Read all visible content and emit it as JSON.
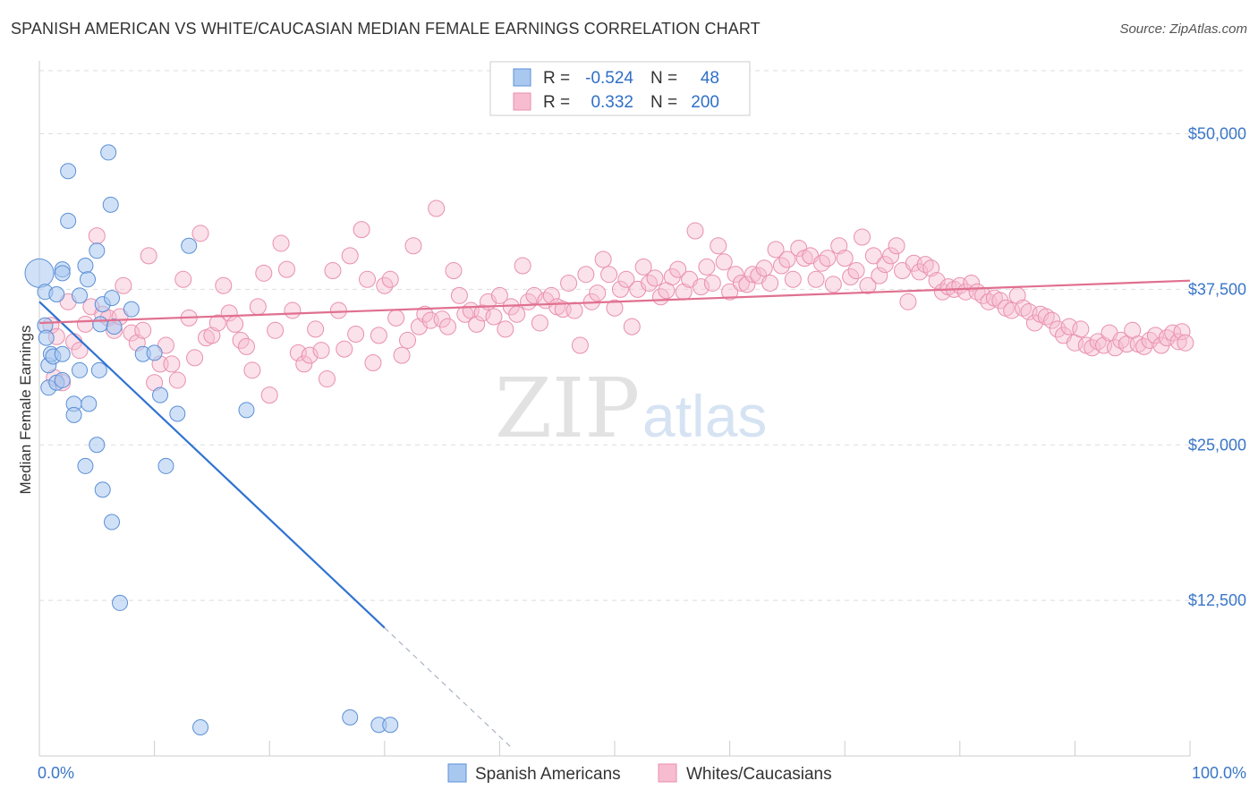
{
  "title": "SPANISH AMERICAN VS WHITE/CAUCASIAN MEDIAN FEMALE EARNINGS CORRELATION CHART",
  "source": "Source: ZipAtlas.com",
  "watermark": {
    "zip": "ZIP",
    "atlas": "atlas"
  },
  "legend": {
    "r_label": "R =",
    "n_label": "N =",
    "rows": [
      {
        "series": "Spanish Americans",
        "r": "-0.524",
        "n": "48"
      },
      {
        "series": "Whites/Caucasians",
        "r": "0.332",
        "n": "200"
      }
    ]
  },
  "colors": {
    "blue_fill": "#a9c8f0",
    "blue_stroke": "#5b8fd6",
    "blue_line": "#2f73d0",
    "pink_fill": "#f7bcd0",
    "pink_stroke": "#e890ad",
    "pink_line": "#e0708f",
    "tick_label": "#3a76c8",
    "grid": "#dddddd"
  },
  "chart_data": {
    "type": "scatter",
    "xlabel": "",
    "ylabel": "Median Female Earnings",
    "x_tick_labels": [
      "0.0%",
      "100.0%"
    ],
    "y_tick_labels": [
      "$12,500",
      "$25,000",
      "$37,500",
      "$50,000"
    ],
    "xlim": [
      0,
      100
    ],
    "ylim": [
      0,
      50000
    ],
    "grid": true,
    "legend_position": "top-center",
    "series": [
      {
        "name": "Spanish Americans",
        "r": -0.524,
        "n": 48,
        "trend": {
          "x0": 0,
          "y0": 36500,
          "x1": 30,
          "y1": 10300,
          "dashed_to_x": 41
        },
        "points": [
          [
            0,
            38800
          ],
          [
            0.5,
            37300
          ],
          [
            0.5,
            34600
          ],
          [
            0.6,
            33600
          ],
          [
            0.8,
            31400
          ],
          [
            0.8,
            29600
          ],
          [
            1,
            32300
          ],
          [
            1.2,
            32100
          ],
          [
            1.5,
            30000
          ],
          [
            1.5,
            37100
          ],
          [
            2,
            39100
          ],
          [
            2,
            38800
          ],
          [
            2,
            32300
          ],
          [
            2,
            30200
          ],
          [
            2.5,
            47000
          ],
          [
            2.5,
            43000
          ],
          [
            3,
            28300
          ],
          [
            3,
            27400
          ],
          [
            3.5,
            37000
          ],
          [
            3.5,
            31000
          ],
          [
            4,
            23300
          ],
          [
            4,
            39400
          ],
          [
            4.2,
            38300
          ],
          [
            4.3,
            28300
          ],
          [
            5,
            40600
          ],
          [
            5,
            25000
          ],
          [
            5.2,
            31000
          ],
          [
            5.3,
            34700
          ],
          [
            5.5,
            36300
          ],
          [
            5.5,
            21400
          ],
          [
            6,
            48500
          ],
          [
            6.2,
            44300
          ],
          [
            6.3,
            36800
          ],
          [
            6.3,
            18800
          ],
          [
            6.5,
            34500
          ],
          [
            7,
            12300
          ],
          [
            8,
            35900
          ],
          [
            9,
            32300
          ],
          [
            10,
            32400
          ],
          [
            10.5,
            29000
          ],
          [
            11,
            23300
          ],
          [
            12,
            27500
          ],
          [
            13,
            41000
          ],
          [
            14,
            2300
          ],
          [
            18,
            27800
          ],
          [
            27,
            3100
          ],
          [
            29.5,
            2500
          ],
          [
            30.5,
            2500
          ]
        ]
      },
      {
        "name": "Whites/Caucasians",
        "r": 0.332,
        "n": 200,
        "trend": {
          "x0": 0,
          "y0": 34800,
          "x1": 100,
          "y1": 38200
        },
        "points": [
          [
            1,
            34600
          ],
          [
            1.3,
            30400
          ],
          [
            1.5,
            33700
          ],
          [
            2,
            30000
          ],
          [
            2.5,
            36500
          ],
          [
            3,
            33300
          ],
          [
            3.5,
            32600
          ],
          [
            4,
            34700
          ],
          [
            4.5,
            36100
          ],
          [
            5,
            41800
          ],
          [
            5.5,
            35500
          ],
          [
            6,
            35200
          ],
          [
            6.5,
            34200
          ],
          [
            7,
            35300
          ],
          [
            7.3,
            37800
          ],
          [
            8,
            34000
          ],
          [
            8.5,
            33200
          ],
          [
            9,
            34200
          ],
          [
            9.5,
            40200
          ],
          [
            10,
            30000
          ],
          [
            10.5,
            31500
          ],
          [
            11,
            33000
          ],
          [
            11.5,
            31500
          ],
          [
            12,
            30200
          ],
          [
            12.5,
            38300
          ],
          [
            13,
            35200
          ],
          [
            13.5,
            32000
          ],
          [
            14,
            42000
          ],
          [
            14.5,
            33600
          ],
          [
            15,
            33800
          ],
          [
            15.5,
            34800
          ],
          [
            16,
            37800
          ],
          [
            16.5,
            35600
          ],
          [
            17,
            34700
          ],
          [
            17.5,
            33400
          ],
          [
            18,
            32900
          ],
          [
            18.5,
            31000
          ],
          [
            19,
            36100
          ],
          [
            19.5,
            38800
          ],
          [
            20,
            29000
          ],
          [
            20.5,
            34200
          ],
          [
            21,
            41200
          ],
          [
            21.5,
            39100
          ],
          [
            22,
            35800
          ],
          [
            22.5,
            32400
          ],
          [
            23,
            31500
          ],
          [
            23.5,
            32200
          ],
          [
            24,
            34300
          ],
          [
            24.5,
            32600
          ],
          [
            25,
            30300
          ],
          [
            25.5,
            39000
          ],
          [
            26,
            35800
          ],
          [
            26.5,
            32700
          ],
          [
            27,
            40200
          ],
          [
            27.5,
            33900
          ],
          [
            28,
            42300
          ],
          [
            28.5,
            38300
          ],
          [
            29,
            31600
          ],
          [
            29.5,
            33800
          ],
          [
            30,
            37800
          ],
          [
            30.5,
            38300
          ],
          [
            31,
            35200
          ],
          [
            31.5,
            32200
          ],
          [
            32,
            33400
          ],
          [
            32.5,
            41000
          ],
          [
            33,
            34500
          ],
          [
            33.5,
            35500
          ],
          [
            34,
            35000
          ],
          [
            34.5,
            44000
          ],
          [
            35,
            35100
          ],
          [
            35.5,
            34500
          ],
          [
            36,
            39000
          ],
          [
            36.5,
            37000
          ],
          [
            37,
            35500
          ],
          [
            37.5,
            35800
          ],
          [
            38,
            34700
          ],
          [
            38.5,
            35600
          ],
          [
            39,
            36500
          ],
          [
            39.5,
            35300
          ],
          [
            40,
            37000
          ],
          [
            40.5,
            34300
          ],
          [
            41,
            36100
          ],
          [
            41.5,
            35500
          ],
          [
            42,
            39400
          ],
          [
            42.5,
            36500
          ],
          [
            43,
            37000
          ],
          [
            43.5,
            34800
          ],
          [
            44,
            36600
          ],
          [
            44.5,
            37000
          ],
          [
            45,
            36100
          ],
          [
            45.5,
            35900
          ],
          [
            46,
            38000
          ],
          [
            46.5,
            35800
          ],
          [
            47,
            33000
          ],
          [
            47.5,
            38700
          ],
          [
            48,
            36500
          ],
          [
            48.5,
            37200
          ],
          [
            49,
            39900
          ],
          [
            49.5,
            38700
          ],
          [
            50,
            36000
          ],
          [
            50.5,
            37500
          ],
          [
            51,
            38300
          ],
          [
            51.5,
            34500
          ],
          [
            52,
            37500
          ],
          [
            52.5,
            39300
          ],
          [
            53,
            38000
          ],
          [
            53.5,
            38400
          ],
          [
            54,
            36900
          ],
          [
            54.5,
            37400
          ],
          [
            55,
            38500
          ],
          [
            55.5,
            39100
          ],
          [
            56,
            37300
          ],
          [
            56.5,
            38300
          ],
          [
            57,
            42200
          ],
          [
            57.5,
            37700
          ],
          [
            58,
            39300
          ],
          [
            58.5,
            38000
          ],
          [
            59,
            41000
          ],
          [
            59.5,
            39700
          ],
          [
            60,
            37300
          ],
          [
            60.5,
            38700
          ],
          [
            61,
            38000
          ],
          [
            61.5,
            37900
          ],
          [
            62,
            38700
          ],
          [
            62.5,
            38600
          ],
          [
            63,
            39200
          ],
          [
            63.5,
            38000
          ],
          [
            64,
            40700
          ],
          [
            64.5,
            39400
          ],
          [
            65,
            39900
          ],
          [
            65.5,
            38300
          ],
          [
            66,
            40800
          ],
          [
            66.5,
            40000
          ],
          [
            67,
            40200
          ],
          [
            67.5,
            38300
          ],
          [
            68,
            39600
          ],
          [
            68.5,
            40000
          ],
          [
            69,
            37900
          ],
          [
            69.5,
            41000
          ],
          [
            70,
            40000
          ],
          [
            70.5,
            38500
          ],
          [
            71,
            39000
          ],
          [
            71.5,
            41700
          ],
          [
            72,
            37800
          ],
          [
            72.5,
            40200
          ],
          [
            73,
            38600
          ],
          [
            73.5,
            39500
          ],
          [
            74,
            40200
          ],
          [
            74.5,
            41000
          ],
          [
            75,
            39000
          ],
          [
            75.5,
            36500
          ],
          [
            76,
            39600
          ],
          [
            76.5,
            38900
          ],
          [
            77,
            39500
          ],
          [
            77.5,
            39200
          ],
          [
            78,
            38200
          ],
          [
            78.5,
            37300
          ],
          [
            79,
            37700
          ],
          [
            79.5,
            37500
          ],
          [
            80,
            37800
          ],
          [
            80.5,
            37300
          ],
          [
            81,
            38000
          ],
          [
            81.5,
            37300
          ],
          [
            82,
            37000
          ],
          [
            82.5,
            36500
          ],
          [
            83,
            36800
          ],
          [
            83.5,
            36600
          ],
          [
            84,
            36000
          ],
          [
            84.5,
            35800
          ],
          [
            85,
            37000
          ],
          [
            85.5,
            36000
          ],
          [
            86,
            35700
          ],
          [
            86.5,
            34800
          ],
          [
            87,
            35500
          ],
          [
            87.5,
            35300
          ],
          [
            88,
            35000
          ],
          [
            88.5,
            34300
          ],
          [
            89,
            33800
          ],
          [
            89.5,
            34500
          ],
          [
            90,
            33200
          ],
          [
            90.5,
            34300
          ],
          [
            91,
            33000
          ],
          [
            91.5,
            32800
          ],
          [
            92,
            33300
          ],
          [
            92.5,
            33000
          ],
          [
            93,
            34000
          ],
          [
            93.5,
            32800
          ],
          [
            94,
            33400
          ],
          [
            94.5,
            33100
          ],
          [
            95,
            34200
          ],
          [
            95.5,
            33100
          ],
          [
            96,
            32900
          ],
          [
            96.5,
            33400
          ],
          [
            97,
            33800
          ],
          [
            97.5,
            33000
          ],
          [
            98,
            33600
          ],
          [
            98.5,
            34000
          ],
          [
            99,
            33300
          ],
          [
            99.3,
            34100
          ],
          [
            99.6,
            33200
          ]
        ]
      }
    ]
  },
  "bottom_legend": [
    "Spanish Americans",
    "Whites/Caucasians"
  ]
}
